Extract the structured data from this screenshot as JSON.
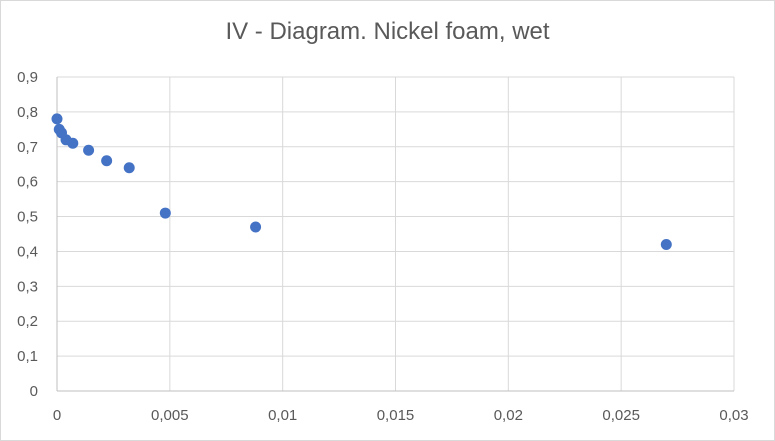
{
  "chart_data": {
    "type": "scatter",
    "title": "IV - Diagram. Nickel foam, wet",
    "xlabel": "",
    "ylabel": "",
    "xlim": [
      0,
      0.03
    ],
    "ylim": [
      0,
      0.9
    ],
    "x_ticks": [
      "0",
      "0,005",
      "0,01",
      "0,015",
      "0,02",
      "0,025",
      "0,03"
    ],
    "y_ticks": [
      "0",
      "0,1",
      "0,2",
      "0,3",
      "0,4",
      "0,5",
      "0,6",
      "0,7",
      "0,8",
      "0,9"
    ],
    "grid": true,
    "legend": "none",
    "series": [
      {
        "color": "#4472c4",
        "points": [
          {
            "x": 0.0,
            "y": 0.78
          },
          {
            "x": 0.0001,
            "y": 0.75
          },
          {
            "x": 0.0002,
            "y": 0.74
          },
          {
            "x": 0.0004,
            "y": 0.72
          },
          {
            "x": 0.0007,
            "y": 0.71
          },
          {
            "x": 0.0014,
            "y": 0.69
          },
          {
            "x": 0.0022,
            "y": 0.66
          },
          {
            "x": 0.0032,
            "y": 0.64
          },
          {
            "x": 0.0048,
            "y": 0.51
          },
          {
            "x": 0.0088,
            "y": 0.47
          },
          {
            "x": 0.027,
            "y": 0.42
          }
        ]
      }
    ]
  }
}
